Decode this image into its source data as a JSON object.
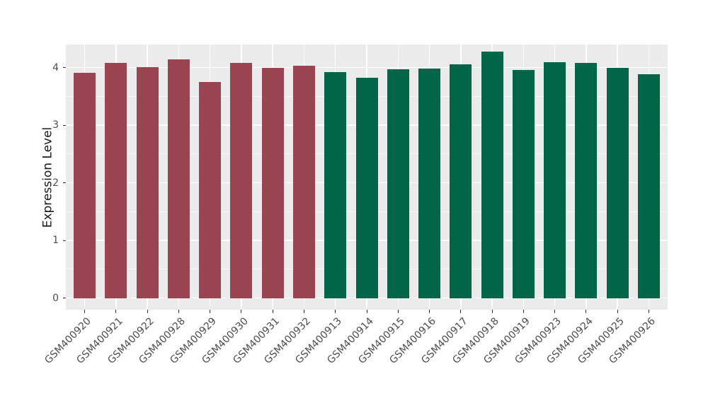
{
  "chart_data": {
    "type": "bar",
    "title": "",
    "xlabel": "",
    "ylabel": "Expression Level",
    "categories": [
      "GSM400920",
      "GSM400921",
      "GSM400922",
      "GSM400928",
      "GSM400929",
      "GSM400930",
      "GSM400931",
      "GSM400932",
      "GSM400913",
      "GSM400914",
      "GSM400915",
      "GSM400916",
      "GSM400917",
      "GSM400918",
      "GSM400919",
      "GSM400923",
      "GSM400924",
      "GSM400925",
      "GSM400926"
    ],
    "values": [
      3.91,
      4.08,
      4.01,
      4.14,
      3.75,
      4.08,
      4.0,
      4.03,
      3.92,
      3.82,
      3.97,
      3.98,
      4.06,
      4.28,
      3.96,
      4.09,
      4.08,
      4.0,
      3.88
    ],
    "bar_groups": [
      0,
      0,
      0,
      0,
      0,
      0,
      0,
      0,
      1,
      1,
      1,
      1,
      1,
      1,
      1,
      1,
      1,
      1,
      1
    ],
    "group_colors": [
      "#9A4452",
      "#006647"
    ],
    "yticks": [
      0,
      1,
      2,
      3,
      4
    ],
    "ytick_labels": [
      "0",
      "1",
      "2",
      "3",
      "4"
    ],
    "yticks_minor": [
      0.5,
      1.5,
      2.5,
      3.5
    ],
    "ylim": [
      -0.2,
      4.4
    ],
    "grid": "on",
    "legend_position": "none",
    "panel_background": "#EBEBEB",
    "gridline_color": "#FFFFFF",
    "axis_text_color": "#4d4d4d",
    "tick_mark_color": "#333333"
  }
}
